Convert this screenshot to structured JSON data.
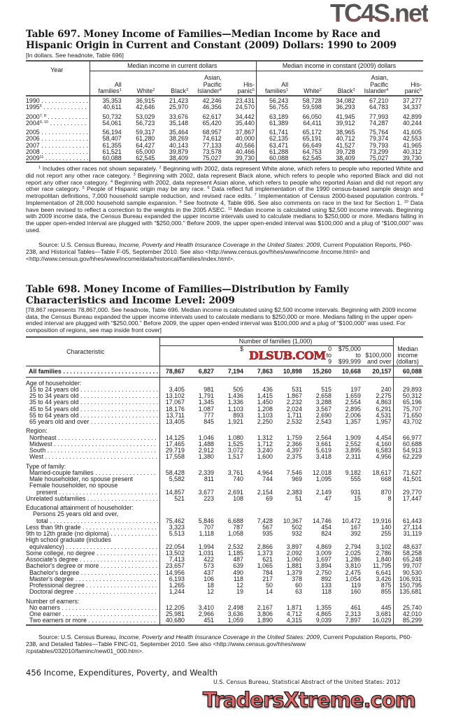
{
  "watermarks": {
    "top": "TC4S.net",
    "middle": "DLSUB.COM",
    "bottom": "TradersXtreme.com"
  },
  "t697": {
    "title": "Table 697. Money Income of Families—Median Income by Race and Hispanic Origin in Current and Constant (2009) Dollars: 1990 to 2009",
    "note": "[In dollars. See headnote, Table 696]",
    "year_header": "Year",
    "group_current": "Median income in current dollars",
    "group_constant": "Median income in constant (2009) dollars",
    "columns": [
      {
        "l1": "",
        "l2": "All",
        "l3": "families",
        "sup": "1"
      },
      {
        "l1": "",
        "l2": "",
        "l3": "White",
        "sup": "2"
      },
      {
        "l1": "",
        "l2": "",
        "l3": "Black",
        "sup": "3"
      },
      {
        "l1": "Asian,",
        "l2": "Pacific",
        "l3": "Islander",
        "sup": "4"
      },
      {
        "l1": "",
        "l2": "His-",
        "l3": "panic",
        "sup": "5"
      }
    ],
    "rows": [
      {
        "year": "1990",
        "sup": "",
        "gap": false,
        "values": [
          "35,353",
          "36,915",
          "21,423",
          "42,246",
          "23,431",
          "56,243",
          "58,728",
          "34,082",
          "67,210",
          "37,277"
        ]
      },
      {
        "year": "1995",
        "sup": "6",
        "gap": false,
        "values": [
          "40,611",
          "42,646",
          "25,970",
          "46,356",
          "24,570",
          "56,755",
          "59,598",
          "36,293",
          "64,783",
          "34,337"
        ]
      },
      {
        "year": "2000",
        "sup": "7, 8",
        "gap": true,
        "values": [
          "50,732",
          "53,029",
          "33,676",
          "62,617",
          "34,442",
          "63,189",
          "66,050",
          "41,945",
          "77,993",
          "42,899"
        ]
      },
      {
        "year": "2004",
        "sup": "9, 10",
        "gap": false,
        "values": [
          "54,061",
          "56,723",
          "35,148",
          "65,420",
          "35,440",
          "61,389",
          "64,411",
          "39,912",
          "74,287",
          "40,244"
        ]
      },
      {
        "year": "2005",
        "sup": "",
        "gap": true,
        "values": [
          "56,194",
          "59,317",
          "35,464",
          "68,957",
          "37,867",
          "61,741",
          "65,172",
          "38,965",
          "75,764",
          "41,605"
        ]
      },
      {
        "year": "2006",
        "sup": "",
        "gap": false,
        "values": [
          "58,407",
          "61,280",
          "38,269",
          "74,612",
          "40,000",
          "62,135",
          "65,191",
          "40,712",
          "79,374",
          "42,553"
        ]
      },
      {
        "year": "2007",
        "sup": "",
        "gap": false,
        "values": [
          "61,355",
          "64,427",
          "40,143",
          "77,133",
          "40,566",
          "63,471",
          "66,649",
          "41,527",
          "79,793",
          "41,965"
        ]
      },
      {
        "year": "2008",
        "sup": "",
        "gap": false,
        "values": [
          "61,521",
          "65,000",
          "39,879",
          "73,578",
          "40,466",
          "61,288",
          "64,753",
          "39,728",
          "73,299",
          "40,312"
        ]
      },
      {
        "year": "2009",
        "sup": "11",
        "gap": false,
        "values": [
          "60,088",
          "62,545",
          "38,409",
          "75,027",
          "39,730",
          "60,088",
          "62,545",
          "38,409",
          "75,027",
          "39,730"
        ]
      }
    ],
    "footnotes": [
      {
        "sup": "1",
        "text": "Includes other races not shown separately. "
      },
      {
        "sup": "2",
        "text": "Beginning with 2002, data represent White alone, which refers to people who reported White and did not report any other race category. "
      },
      {
        "sup": "3",
        "text": "Beginning with 2002, data represent Black alone, which refers to people who reported Black and did not report any other race category. "
      },
      {
        "sup": "4",
        "text": "Beginning with 2002, data represent Asian alone, which refers to people who reported Asian and did not report any other race category. "
      },
      {
        "sup": "5",
        "text": "People of Hispanic origin may be any race. "
      },
      {
        "sup": "6",
        "text": "Data reflect full implementation of the 1990 census-based sample design and metropolitan definitions, 7,000 household sample reduction, and revised race edits. "
      },
      {
        "sup": "7",
        "text": "Implementation of Census 2000-based population controls. "
      },
      {
        "sup": "8",
        "text": "Implementation of 28,000 household sample expansion. "
      },
      {
        "sup": "9",
        "text": "See footnote 4, Table 696. See also comments on race in the text for Section 1. "
      },
      {
        "sup": "10",
        "text": "Data have been revised to reflect a correction to the weights in the 2005 ASEC. "
      },
      {
        "sup": "11",
        "text": "Median income is calculated using $2,500 income intervals. Beginning with 2009 income data, the Census Bureau expanded the upper income intervals used to calculate medians to $250,000 or more. Medians falling in the upper open-ended interval are plugged with “$250,000.” Before 2009, the upper open-ended interval was $100,000 and a plug of “$100,000” was used."
      }
    ],
    "source": {
      "prefix": "Source: U.S. Census Bureau, ",
      "italic": "Income, Poverty and Health Insurance Coverage in the United States: 2009",
      "suffix": ", Current Population Reports,  P60-238, and Historical Tables—Table F-05, September 2010. See also <http://www.census.gov/hhes/www/income /income.html> and <http://www.census.gov/hhes/www/income/data/historical/families/index.html>."
    }
  },
  "t698": {
    "title": "Table 698. Money Income of Families—Distribution by Family Characteristics and Income Level: 2009",
    "note": "[78,867 represents 78,867,000. See headnote, Table 696. Median income is calculated using $2,500 income intervals. Beginning with 2009 income data, the Census Bureau expanded the upper income intervals used to calculate medians to $250,000 or more. Medians falling in the upper open-ended interval are plugged with “$250,000.” Before 2009, the upper open-ended interval was $100,000 and a plug of “$100,000” was used. For composition of regions, see map inside front cover]",
    "char_header": "Characteristic",
    "group_header": "Number of families (1,000)",
    "columns": [
      {
        "l1": "",
        "l2": "",
        "l3": ""
      },
      {
        "l1": "",
        "l2": "",
        "l3": ""
      },
      {
        "l1": "$",
        "l2": "",
        "l3": ""
      },
      {
        "l1": "",
        "l2": "",
        "l3": ""
      },
      {
        "l1": "",
        "l2": "",
        "l3": ""
      },
      {
        "l1": "0",
        "l2": "to",
        "l3": "9"
      },
      {
        "l1": "$75,000",
        "l2": "to",
        "l3": "$99,999"
      },
      {
        "l1": "",
        "l2": "$100,000",
        "l3": "and over"
      }
    ],
    "median_header": {
      "l1": "Median",
      "l2": "income",
      "l3": "(dollars)"
    },
    "rows": [
      {
        "label": "All families",
        "bold": true,
        "indent": 0,
        "gap": false,
        "values": [
          "78,867",
          "6,827",
          "7,194",
          "7,863",
          "10,898",
          "15,260",
          "10,668",
          "20,157",
          "60,088"
        ]
      },
      {
        "label": "Age of householder:",
        "indent": 0,
        "gap": true,
        "values": []
      },
      {
        "label": "15 to 24 years old",
        "indent": 1,
        "values": [
          "3,405",
          "981",
          "505",
          "436",
          "531",
          "515",
          "197",
          "240",
          "29,893"
        ]
      },
      {
        "label": "25 to 34 years old",
        "indent": 1,
        "values": [
          "13,102",
          "1,791",
          "1,436",
          "1,415",
          "1,867",
          "2,658",
          "1,659",
          "2,275",
          "50,312"
        ]
      },
      {
        "label": "35 to 44 years old",
        "indent": 1,
        "values": [
          "17,067",
          "1,345",
          "1,336",
          "1,450",
          "2,232",
          "3,288",
          "2,554",
          "4,863",
          "65,196"
        ]
      },
      {
        "label": "45 to 54 years old",
        "indent": 1,
        "values": [
          "18,176",
          "1,087",
          "1,103",
          "1,208",
          "2,024",
          "3,567",
          "2,895",
          "6,291",
          "75,707"
        ]
      },
      {
        "label": "55 to 64 years old",
        "indent": 1,
        "values": [
          "13,711",
          "777",
          "893",
          "1,103",
          "1,711",
          "2,690",
          "2,006",
          "4,531",
          "71,650"
        ]
      },
      {
        "label": "65 years old and over",
        "indent": 1,
        "values": [
          "13,405",
          "845",
          "1,921",
          "2,250",
          "2,532",
          "2,543",
          "1,357",
          "1,957",
          "43,702"
        ]
      },
      {
        "label": "Region:",
        "indent": 0,
        "gap": true,
        "values": []
      },
      {
        "label": "Northeast",
        "indent": 1,
        "values": [
          "14,125",
          "1,046",
          "1,080",
          "1,312",
          "1,759",
          "2,564",
          "1,909",
          "4,454",
          "66,977"
        ]
      },
      {
        "label": "Midwest",
        "indent": 1,
        "values": [
          "17,465",
          "1,488",
          "1,525",
          "1,712",
          "2,366",
          "3,661",
          "2,552",
          "4,160",
          "60,688"
        ]
      },
      {
        "label": "South",
        "indent": 1,
        "values": [
          "29,719",
          "2,912",
          "3,072",
          "3,240",
          "4,397",
          "5,619",
          "3,895",
          "6,583",
          "54,913"
        ]
      },
      {
        "label": "West",
        "indent": 1,
        "values": [
          "17,558",
          "1,380",
          "1,517",
          "1,600",
          "2,375",
          "3,418",
          "2,311",
          "4,956",
          "62,229"
        ]
      },
      {
        "label": "Type of family:",
        "indent": 0,
        "gap": true,
        "values": []
      },
      {
        "label": "Married-couple families",
        "indent": 1,
        "values": [
          "58,428",
          "2,339",
          "3,761",
          "4,964",
          "7,546",
          "12,018",
          "9,182",
          "18,617",
          "71,627"
        ]
      },
      {
        "label": "Male householder, no spouse present",
        "indent": 1,
        "nodots": true,
        "values": [
          "5,582",
          "811",
          "740",
          "744",
          "969",
          "1,095",
          "555",
          "668",
          "41,501"
        ]
      },
      {
        "label": "Female householder, no spouse",
        "indent": 1,
        "values": []
      },
      {
        "label": "present",
        "indent": 3,
        "values": [
          "14,857",
          "3,677",
          "2,691",
          "2,154",
          "2,383",
          "2,149",
          "931",
          "870",
          "29,770"
        ]
      },
      {
        "label": "Unrelated subfamilies",
        "indent": 0,
        "values": [
          "521",
          "223",
          "108",
          "69",
          "51",
          "47",
          "15",
          "8",
          "17,447"
        ]
      },
      {
        "label": "Educational attainment of householder:",
        "indent": 0,
        "gap": true,
        "values": []
      },
      {
        "label": "Persons 25 years old and over,",
        "indent": 2,
        "values": []
      },
      {
        "label": "total",
        "indent": 3,
        "values": [
          "75,462",
          "5,846",
          "6,688",
          "7,428",
          "10,367",
          "14,746",
          "10,472",
          "19,916",
          "61,443"
        ]
      },
      {
        "label": "Less than 9th grade",
        "indent": 0,
        "values": [
          "3,323",
          "707",
          "787",
          "567",
          "502",
          "454",
          "167",
          "140",
          "27,114"
        ]
      },
      {
        "label": "9th to 12th grade (no diploma)",
        "indent": 0,
        "values": [
          "5,513",
          "1,118",
          "1,058",
          "935",
          "932",
          "824",
          "392",
          "255",
          "31,119"
        ]
      },
      {
        "label": "High school graduate (includes",
        "indent": 0,
        "values": []
      },
      {
        "label": "equivalency)",
        "indent": 1,
        "values": [
          "22,054",
          "1,994",
          "2,532",
          "2,866",
          "3,897",
          "4,869",
          "2,794",
          "3,102",
          "48,637"
        ]
      },
      {
        "label": "Some college, no degree",
        "indent": 0,
        "values": [
          "13,502",
          "1,031",
          "1,185",
          "1,373",
          "2,092",
          "3,009",
          "2,025",
          "2,786",
          "58,258"
        ]
      },
      {
        "label": "Associate's degree",
        "indent": 0,
        "values": [
          "7,413",
          "422",
          "487",
          "621",
          "1,060",
          "1,697",
          "1,286",
          "1,840",
          "65,248"
        ]
      },
      {
        "label": "Bachelor's degree or more",
        "indent": 0,
        "values": [
          "23,657",
          "573",
          "639",
          "1,065",
          "1,881",
          "3,894",
          "3,810",
          "11,795",
          "99,707"
        ]
      },
      {
        "label": "Bachelor's degree",
        "indent": 1,
        "values": [
          "14,956",
          "437",
          "490",
          "784",
          "1,379",
          "2,750",
          "2,475",
          "6,641",
          "90,530"
        ]
      },
      {
        "label": "Master's degree",
        "indent": 1,
        "values": [
          "6,193",
          "106",
          "118",
          "217",
          "378",
          "892",
          "1,054",
          "3,426",
          "106,931"
        ]
      },
      {
        "label": "Professional degree",
        "indent": 1,
        "values": [
          "1,265",
          "18",
          "12",
          "50",
          "60",
          "133",
          "119",
          "875",
          "150,795"
        ]
      },
      {
        "label": "Doctoral degree",
        "indent": 1,
        "values": [
          "1,244",
          "12",
          "19",
          "14",
          "63",
          "118",
          "160",
          "855",
          "135,681"
        ]
      },
      {
        "label": "Number of earners:",
        "indent": 0,
        "gap": true,
        "values": []
      },
      {
        "label": "No earners",
        "indent": 1,
        "values": [
          "12,205",
          "3,410",
          "2,498",
          "2,167",
          "1,871",
          "1,355",
          "461",
          "445",
          "25,740"
        ]
      },
      {
        "label": "One earner",
        "indent": 1,
        "values": [
          "25,981",
          "2,966",
          "3,636",
          "3,806",
          "4,712",
          "4,865",
          "2,313",
          "3,681",
          "42,010"
        ]
      },
      {
        "label": "Two earners or more",
        "indent": 1,
        "values": [
          "40,680",
          "451",
          "1,059",
          "1,890",
          "4,315",
          "9,039",
          "7,897",
          "16,029",
          "85,299"
        ]
      }
    ],
    "source": {
      "prefix": "Source: U.S. Census Bureau, ",
      "italic": "Income, Poverty and Health Insurance Coverage in the United States: 2009",
      "suffix": ", Current Population Reports, P60-238, and Detailed Tables—Table FINC-01, September 2010. See also <http://www.census.gov/hhes/www /cpstables/032010/faminc/new01_000.htm>."
    }
  },
  "footer": {
    "page_line": "456  Income, Expenditures, Poverty, and Wealth",
    "publication": "U.S. Census Bureau, Statistical Abstract of the United States: 2012"
  }
}
